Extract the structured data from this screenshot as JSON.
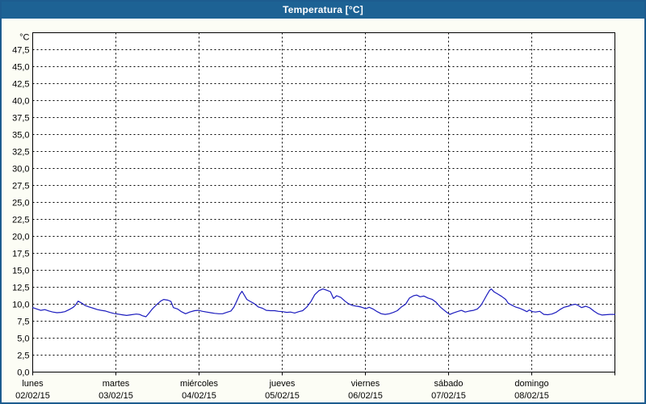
{
  "window": {
    "title": "Temperatura [°C]"
  },
  "colors": {
    "titlebar_bg": "#1d6294",
    "titlebar_text": "#ffffff",
    "window_border": "#1d5c8f",
    "content_bg": "#fcfdf5",
    "plot_bg": "#ffffff",
    "grid": "#000000",
    "axis": "#000000",
    "label": "#000000",
    "line": "#1c1cbe"
  },
  "chart_data": {
    "type": "line",
    "title": "Temperatura [°C]",
    "grid": true,
    "legend": "none",
    "y_axis": {
      "unit_label": "°C",
      "min": 0,
      "max": 50,
      "tick_step": 2.5,
      "decimal_separator": ",",
      "tick_labels": [
        "0,0",
        "2,5",
        "5,0",
        "7,5",
        "10,0",
        "12,5",
        "15,0",
        "17,5",
        "20,0",
        "22,5",
        "25,0",
        "27,5",
        "30,0",
        "32,5",
        "35,0",
        "37,5",
        "40,0",
        "42,5",
        "45,0",
        "47,5"
      ]
    },
    "x_axis": {
      "hours_total": 168,
      "hours_per_day": 24,
      "days": [
        {
          "name": "lunes",
          "date": "02/02/15"
        },
        {
          "name": "martes",
          "date": "03/02/15"
        },
        {
          "name": "miércoles",
          "date": "04/02/15"
        },
        {
          "name": "jueves",
          "date": "05/02/15"
        },
        {
          "name": "viernes",
          "date": "06/02/15"
        },
        {
          "name": "sábado",
          "date": "07/02/15"
        },
        {
          "name": "domingo",
          "date": "08/02/15"
        }
      ]
    },
    "series": [
      {
        "name": "Temperatura",
        "color": "#1c1cbe",
        "points": [
          [
            0.0,
            9.5
          ],
          [
            1.2,
            9.3
          ],
          [
            2.3,
            9.1
          ],
          [
            3.5,
            9.2
          ],
          [
            4.7,
            9.0
          ],
          [
            5.8,
            8.85
          ],
          [
            7.0,
            8.75
          ],
          [
            8.2,
            8.8
          ],
          [
            9.3,
            8.9
          ],
          [
            10.5,
            9.2
          ],
          [
            11.7,
            9.55
          ],
          [
            12.4,
            9.9
          ],
          [
            13.1,
            10.45
          ],
          [
            14.0,
            10.2
          ],
          [
            15.2,
            9.8
          ],
          [
            16.3,
            9.6
          ],
          [
            17.5,
            9.4
          ],
          [
            18.7,
            9.2
          ],
          [
            19.8,
            9.1
          ],
          [
            21.0,
            9.0
          ],
          [
            22.2,
            8.8
          ],
          [
            23.3,
            8.65
          ],
          [
            24.0,
            8.6
          ],
          [
            25.7,
            8.45
          ],
          [
            27.1,
            8.35
          ],
          [
            28.5,
            8.45
          ],
          [
            29.9,
            8.55
          ],
          [
            30.8,
            8.5
          ],
          [
            31.7,
            8.3
          ],
          [
            32.7,
            8.15
          ],
          [
            33.6,
            8.7
          ],
          [
            34.5,
            9.3
          ],
          [
            35.7,
            9.9
          ],
          [
            36.9,
            10.45
          ],
          [
            37.8,
            10.7
          ],
          [
            39.0,
            10.6
          ],
          [
            39.9,
            10.4
          ],
          [
            40.6,
            9.5
          ],
          [
            41.8,
            9.3
          ],
          [
            42.9,
            8.9
          ],
          [
            44.1,
            8.6
          ],
          [
            45.3,
            8.85
          ],
          [
            46.7,
            9.05
          ],
          [
            47.8,
            9.1
          ],
          [
            49.0,
            8.95
          ],
          [
            50.2,
            8.85
          ],
          [
            51.3,
            8.75
          ],
          [
            52.5,
            8.65
          ],
          [
            53.7,
            8.6
          ],
          [
            54.8,
            8.6
          ],
          [
            56.0,
            8.8
          ],
          [
            57.2,
            9.0
          ],
          [
            58.1,
            9.6
          ],
          [
            59.0,
            10.6
          ],
          [
            59.7,
            11.4
          ],
          [
            60.4,
            11.9
          ],
          [
            61.1,
            11.3
          ],
          [
            61.8,
            10.7
          ],
          [
            62.8,
            10.4
          ],
          [
            63.9,
            10.1
          ],
          [
            65.1,
            9.6
          ],
          [
            66.3,
            9.4
          ],
          [
            67.4,
            9.1
          ],
          [
            68.6,
            9.05
          ],
          [
            69.8,
            9.05
          ],
          [
            70.9,
            8.95
          ],
          [
            72.1,
            8.9
          ],
          [
            73.3,
            8.8
          ],
          [
            74.4,
            8.85
          ],
          [
            75.6,
            8.7
          ],
          [
            76.8,
            8.9
          ],
          [
            77.9,
            9.05
          ],
          [
            79.1,
            9.6
          ],
          [
            80.3,
            10.4
          ],
          [
            81.4,
            11.4
          ],
          [
            82.6,
            12.0
          ],
          [
            83.8,
            12.25
          ],
          [
            84.9,
            12.05
          ],
          [
            85.9,
            11.85
          ],
          [
            86.8,
            10.85
          ],
          [
            87.7,
            11.25
          ],
          [
            88.9,
            11.0
          ],
          [
            90.1,
            10.45
          ],
          [
            91.2,
            10.05
          ],
          [
            92.4,
            9.8
          ],
          [
            93.6,
            9.7
          ],
          [
            94.7,
            9.6
          ],
          [
            96.1,
            9.35
          ],
          [
            97.1,
            9.55
          ],
          [
            98.2,
            9.3
          ],
          [
            99.4,
            8.9
          ],
          [
            100.6,
            8.6
          ],
          [
            101.7,
            8.5
          ],
          [
            102.9,
            8.6
          ],
          [
            104.1,
            8.8
          ],
          [
            105.2,
            9.05
          ],
          [
            106.4,
            9.6
          ],
          [
            107.6,
            10.0
          ],
          [
            108.7,
            10.9
          ],
          [
            109.9,
            11.25
          ],
          [
            110.8,
            11.35
          ],
          [
            111.8,
            11.1
          ],
          [
            112.9,
            11.2
          ],
          [
            114.1,
            10.9
          ],
          [
            115.3,
            10.7
          ],
          [
            116.4,
            10.3
          ],
          [
            117.6,
            9.6
          ],
          [
            118.5,
            9.2
          ],
          [
            119.5,
            8.8
          ],
          [
            120.4,
            8.5
          ],
          [
            121.3,
            8.7
          ],
          [
            122.5,
            8.9
          ],
          [
            123.7,
            9.1
          ],
          [
            124.8,
            8.85
          ],
          [
            126.0,
            9.0
          ],
          [
            127.2,
            9.1
          ],
          [
            128.3,
            9.3
          ],
          [
            129.3,
            9.8
          ],
          [
            130.2,
            10.6
          ],
          [
            131.1,
            11.4
          ],
          [
            131.8,
            12.0
          ],
          [
            132.3,
            12.25
          ],
          [
            133.2,
            11.8
          ],
          [
            134.2,
            11.5
          ],
          [
            135.3,
            11.15
          ],
          [
            136.5,
            10.7
          ],
          [
            137.2,
            10.15
          ],
          [
            138.1,
            9.9
          ],
          [
            139.3,
            9.6
          ],
          [
            140.5,
            9.4
          ],
          [
            141.6,
            9.15
          ],
          [
            142.6,
            8.9
          ],
          [
            143.3,
            9.15
          ],
          [
            144.2,
            8.9
          ],
          [
            145.1,
            8.85
          ],
          [
            146.3,
            8.95
          ],
          [
            147.5,
            8.5
          ],
          [
            148.6,
            8.45
          ],
          [
            149.8,
            8.55
          ],
          [
            151.0,
            8.8
          ],
          [
            152.1,
            9.2
          ],
          [
            153.3,
            9.55
          ],
          [
            154.5,
            9.7
          ],
          [
            155.6,
            9.9
          ],
          [
            156.6,
            10.0
          ],
          [
            157.5,
            9.8
          ],
          [
            158.4,
            9.5
          ],
          [
            159.6,
            9.7
          ],
          [
            160.8,
            9.45
          ],
          [
            161.9,
            9.0
          ],
          [
            163.1,
            8.6
          ],
          [
            164.3,
            8.4
          ],
          [
            165.4,
            8.45
          ],
          [
            166.6,
            8.5
          ],
          [
            168.0,
            8.5
          ]
        ]
      }
    ]
  }
}
